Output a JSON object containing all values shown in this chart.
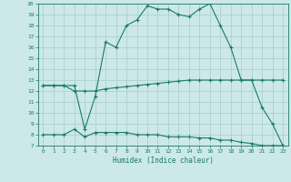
{
  "line1_x": [
    0,
    1,
    2,
    3,
    4,
    5,
    6,
    7,
    8,
    9,
    10,
    11,
    12,
    13,
    14,
    15,
    16,
    17,
    18,
    19,
    20,
    21,
    22,
    23
  ],
  "line1_y": [
    12.5,
    12.5,
    12.5,
    12.5,
    8.5,
    11.5,
    16.5,
    16.0,
    18.0,
    18.5,
    19.8,
    19.5,
    19.5,
    19.0,
    18.8,
    19.5,
    20.0,
    18.0,
    16.0,
    13.0,
    13.0,
    10.5,
    9.0,
    7.0
  ],
  "line2_x": [
    0,
    1,
    2,
    3,
    4,
    5,
    6,
    7,
    8,
    9,
    10,
    11,
    12,
    13,
    14,
    15,
    16,
    17,
    18,
    19,
    20,
    21,
    22,
    23
  ],
  "line2_y": [
    12.5,
    12.5,
    12.5,
    12.0,
    12.0,
    12.0,
    12.2,
    12.3,
    12.4,
    12.5,
    12.6,
    12.7,
    12.8,
    12.9,
    13.0,
    13.0,
    13.0,
    13.0,
    13.0,
    13.0,
    13.0,
    13.0,
    13.0,
    13.0
  ],
  "line3_x": [
    0,
    1,
    2,
    3,
    4,
    5,
    6,
    7,
    8,
    9,
    10,
    11,
    12,
    13,
    14,
    15,
    16,
    17,
    18,
    19,
    20,
    21,
    22,
    23
  ],
  "line3_y": [
    8.0,
    8.0,
    8.0,
    8.5,
    7.8,
    8.2,
    8.2,
    8.2,
    8.2,
    8.0,
    8.0,
    8.0,
    7.8,
    7.8,
    7.8,
    7.7,
    7.7,
    7.5,
    7.5,
    7.3,
    7.2,
    7.0,
    7.0,
    7.0
  ],
  "line_color": "#1a7a6a",
  "bg_color": "#cce8e8",
  "grid_color": "#a8cccc",
  "xlabel": "Humidex (Indice chaleur)",
  "ylim": [
    7,
    20
  ],
  "xlim": [
    -0.5,
    23.5
  ],
  "yticks": [
    7,
    8,
    9,
    10,
    11,
    12,
    13,
    14,
    15,
    16,
    17,
    18,
    19,
    20
  ],
  "xticks": [
    0,
    1,
    2,
    3,
    4,
    5,
    6,
    7,
    8,
    9,
    10,
    11,
    12,
    13,
    14,
    15,
    16,
    17,
    18,
    19,
    20,
    21,
    22,
    23
  ]
}
